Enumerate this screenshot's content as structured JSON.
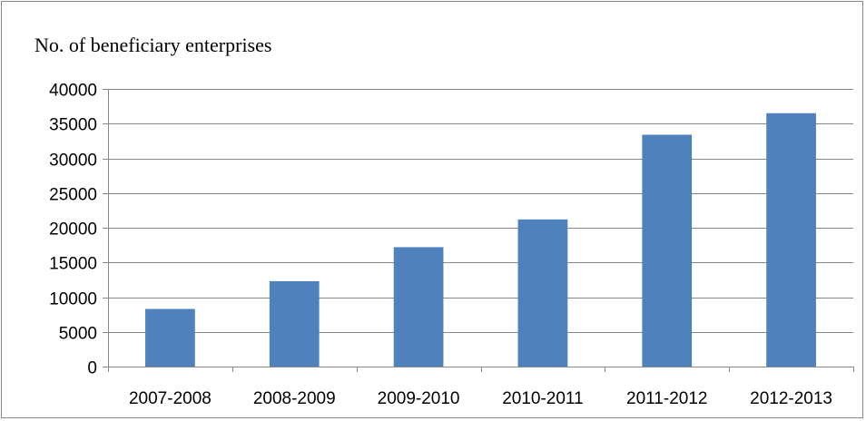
{
  "chart_data": {
    "type": "bar",
    "title": "No. of beneficiary enterprises",
    "categories": [
      "2007-2008",
      "2008-2009",
      "2009-2010",
      "2010-2011",
      "2011-2012",
      "2012-2013"
    ],
    "series": [
      {
        "values": [
          8300,
          12300,
          17200,
          21200,
          33400,
          36500
        ]
      }
    ],
    "xlabel": "",
    "ylabel": "",
    "ylim": [
      0,
      40000
    ],
    "yticks": [
      0,
      5000,
      10000,
      15000,
      20000,
      25000,
      30000,
      35000,
      40000
    ],
    "grid": true,
    "legend": "none",
    "bar_color": "#4F81BD"
  }
}
